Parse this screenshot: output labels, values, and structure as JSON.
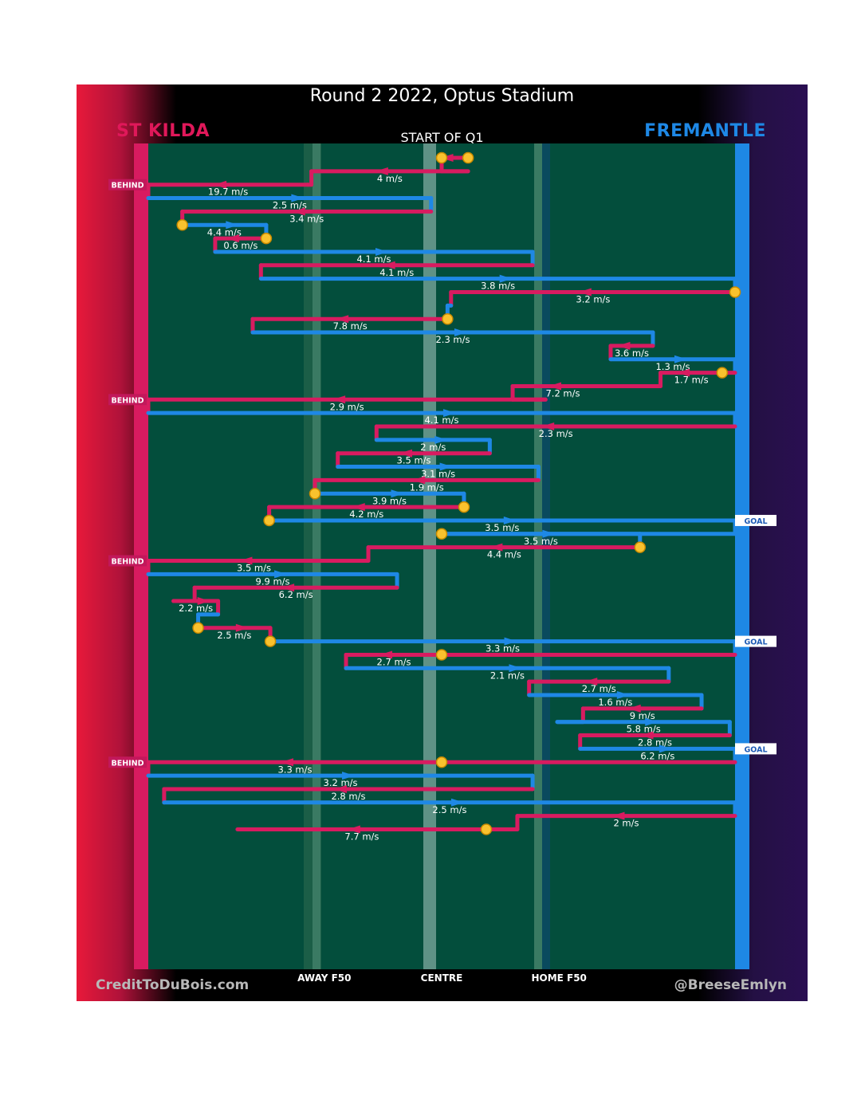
{
  "title": "Round 2 2022, Optus Stadium",
  "teams": {
    "home": "ST KILDA",
    "away": "FREMANTLE"
  },
  "period": "START OF Q1",
  "footer": {
    "left": "CreditToDuBois.com",
    "right": "@BreeseEmlyn"
  },
  "colors": {
    "home": "#d81b60",
    "away": "#1e88e5",
    "field": "#034e3c",
    "marker": "#f9c22e"
  },
  "chart_data": {
    "type": "line",
    "title": "Round 2 2022, Optus Stadium",
    "description": "Ball movement chain chart; x = ground position (0 = St Kilda defensive end, 100 = Fremantle defensive end, 50 = centre); each row is one possession leg, top to bottom in time order",
    "xlim": [
      0,
      100
    ],
    "x_ticks": [
      {
        "x": 30,
        "label": "AWAY F50"
      },
      {
        "x": 50,
        "label": "CENTRE"
      },
      {
        "x": 70,
        "label": "HOME F50"
      }
    ],
    "legs": [
      {
        "team": "home",
        "from": 54.5,
        "to": 50.0,
        "speed": "",
        "marker_start": true,
        "marker_end": true
      },
      {
        "team": "home",
        "from": 54.5,
        "to": 27.8,
        "speed": "4 m/s"
      },
      {
        "team": "home",
        "from": 27.2,
        "to": 0,
        "speed": "19.7 m/s",
        "outcome": "BEHIND"
      },
      {
        "team": "away",
        "from": 0,
        "to": 48.2,
        "speed": "2.5 m/s"
      },
      {
        "team": "home",
        "from": 48.2,
        "to": 5.8,
        "speed": "3.4 m/s"
      },
      {
        "team": "away",
        "from": 5.8,
        "to": 20.1,
        "speed": "4.4 m/s",
        "marker_start": true
      },
      {
        "team": "home",
        "from": 20.1,
        "to": 11.4,
        "speed": "0.6 m/s",
        "marker_start": true
      },
      {
        "team": "away",
        "from": 11.4,
        "to": 65.5,
        "speed": "4.1 m/s"
      },
      {
        "team": "home",
        "from": 65.5,
        "to": 19.2,
        "speed": "4.1 m/s"
      },
      {
        "team": "away",
        "from": 19.2,
        "to": 100,
        "speed": "3.8 m/s"
      },
      {
        "team": "home",
        "from": 100,
        "to": 51.6,
        "speed": "3.2 m/s",
        "marker_start": true
      },
      {
        "team": "away",
        "from": 51.6,
        "to": 51.0,
        "speed": ""
      },
      {
        "team": "home",
        "from": 51.0,
        "to": 17.8,
        "speed": "7.8 m/s",
        "marker_start": true
      },
      {
        "team": "away",
        "from": 17.8,
        "to": 86.0,
        "speed": "2.3 m/s"
      },
      {
        "team": "home",
        "from": 86.0,
        "to": 78.8,
        "speed": "3.6 m/s"
      },
      {
        "team": "away",
        "from": 78.8,
        "to": 100,
        "speed": "1.3 m/s"
      },
      {
        "team": "home",
        "from": 97.8,
        "to": 87.3,
        "speed": "1.7 m/s",
        "marker_start": true
      },
      {
        "team": "home",
        "from": 79.2,
        "to": 62.1,
        "speed": "7.2 m/s"
      },
      {
        "team": "home",
        "from": 67.7,
        "to": 0,
        "speed": "2.9 m/s",
        "outcome": "BEHIND"
      },
      {
        "team": "away",
        "from": 0,
        "to": 100,
        "speed": "4.1 m/s"
      },
      {
        "team": "home",
        "from": 100,
        "to": 38.9,
        "speed": "2.3 m/s"
      },
      {
        "team": "away",
        "from": 38.9,
        "to": 58.2,
        "speed": "2 m/s"
      },
      {
        "team": "home",
        "from": 58.2,
        "to": 32.3,
        "speed": "3.5 m/s"
      },
      {
        "team": "away",
        "from": 32.3,
        "to": 66.5,
        "speed": "3.1 m/s"
      },
      {
        "team": "home",
        "from": 66.5,
        "to": 28.4,
        "speed": "1.9 m/s"
      },
      {
        "team": "away",
        "from": 28.4,
        "to": 53.8,
        "speed": "3.9 m/s",
        "marker_start": true
      },
      {
        "team": "home",
        "from": 53.8,
        "to": 20.6,
        "speed": "4.2 m/s",
        "marker_start": true
      },
      {
        "team": "away",
        "from": 20.6,
        "to": 100,
        "speed": "3.5 m/s",
        "marker_start": true,
        "outcome": "GOAL"
      },
      {
        "team": "away",
        "from": 50.0,
        "to": 83.8,
        "speed": "3.5 m/s",
        "marker_start": true
      },
      {
        "team": "home",
        "from": 83.8,
        "to": 37.5,
        "speed": "4.4 m/s",
        "marker_start": true
      },
      {
        "team": "home",
        "from": 36.0,
        "to": 0,
        "speed": "3.5 m/s",
        "outcome": "BEHIND"
      },
      {
        "team": "away",
        "from": 0,
        "to": 42.4,
        "speed": "9.9 m/s"
      },
      {
        "team": "home",
        "from": 42.4,
        "to": 7.9,
        "speed": "6.2 m/s"
      },
      {
        "team": "home",
        "from": 4.3,
        "to": 11.9,
        "speed": "2.2 m/s"
      },
      {
        "team": "away",
        "from": 11.9,
        "to": 8.5,
        "speed": ""
      },
      {
        "team": "home",
        "from": 8.5,
        "to": 20.8,
        "speed": "2.5 m/s",
        "marker_start": true
      },
      {
        "team": "away",
        "from": 20.8,
        "to": 100,
        "speed": "3.3 m/s",
        "marker_start": true,
        "outcome": "GOAL"
      },
      {
        "team": "home",
        "from": 50.0,
        "to": 33.7,
        "speed": "2.7 m/s",
        "marker_start": true
      },
      {
        "team": "away",
        "from": 33.7,
        "to": 88.7,
        "speed": "2.1 m/s"
      },
      {
        "team": "home",
        "from": 88.7,
        "to": 64.9,
        "speed": "2.7 m/s"
      },
      {
        "team": "away",
        "from": 64.9,
        "to": 94.3,
        "speed": "1.6 m/s"
      },
      {
        "team": "home",
        "from": 94.3,
        "to": 74.1,
        "speed": "9 m/s"
      },
      {
        "team": "away",
        "from": 69.7,
        "to": 99.1,
        "speed": "5.8 m/s"
      },
      {
        "team": "home",
        "from": 99.1,
        "to": 73.6,
        "speed": "2.8 m/s"
      },
      {
        "team": "away",
        "from": 73.6,
        "to": 100,
        "speed": "6.2 m/s",
        "outcome": "GOAL"
      },
      {
        "team": "home",
        "from": 50.0,
        "to": 0,
        "speed": "3.3 m/s",
        "marker_start": true,
        "outcome": "BEHIND"
      },
      {
        "team": "away",
        "from": 0,
        "to": 65.5,
        "speed": "3.2 m/s"
      },
      {
        "team": "home",
        "from": 65.5,
        "to": 2.7,
        "speed": "2.8 m/s"
      },
      {
        "team": "away",
        "from": 2.7,
        "to": 100,
        "speed": "2.5 m/s"
      },
      {
        "team": "home",
        "from": 100,
        "to": 62.9,
        "speed": "2 m/s"
      },
      {
        "team": "home",
        "from": 57.6,
        "to": 15.2,
        "speed": "7.7 m/s",
        "marker_start": true
      }
    ]
  }
}
